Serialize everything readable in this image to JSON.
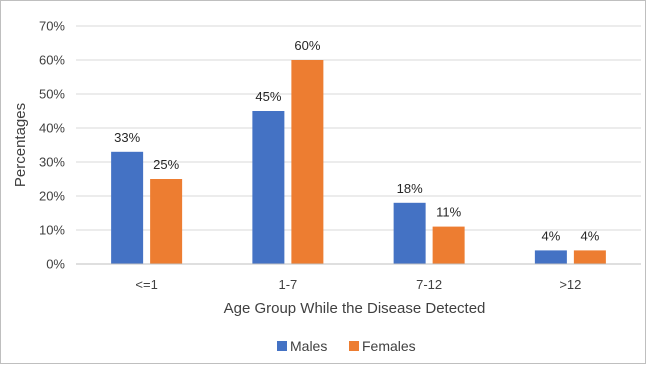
{
  "chart_data": {
    "type": "bar",
    "title": "",
    "xlabel": "Age Group While the Disease Detected",
    "ylabel": "Percentages",
    "categories": [
      "<=1",
      "1-7",
      "7-12",
      ">12"
    ],
    "ylim": [
      0,
      70
    ],
    "yticks": [
      0,
      10,
      20,
      30,
      40,
      50,
      60,
      70
    ],
    "ytick_labels": [
      "0%",
      "10%",
      "20%",
      "30%",
      "40%",
      "50%",
      "60%",
      "70%"
    ],
    "grid": "horizontal",
    "legend_position": "bottom",
    "series": [
      {
        "name": "Males",
        "color": "#4472c4",
        "values": [
          33,
          45,
          18,
          4
        ],
        "labels": [
          "33%",
          "45%",
          "18%",
          "4%"
        ]
      },
      {
        "name": "Females",
        "color": "#ed7d31",
        "values": [
          25,
          60,
          11,
          4
        ],
        "labels": [
          "25%",
          "60%",
          "11%",
          "4%"
        ]
      }
    ]
  }
}
